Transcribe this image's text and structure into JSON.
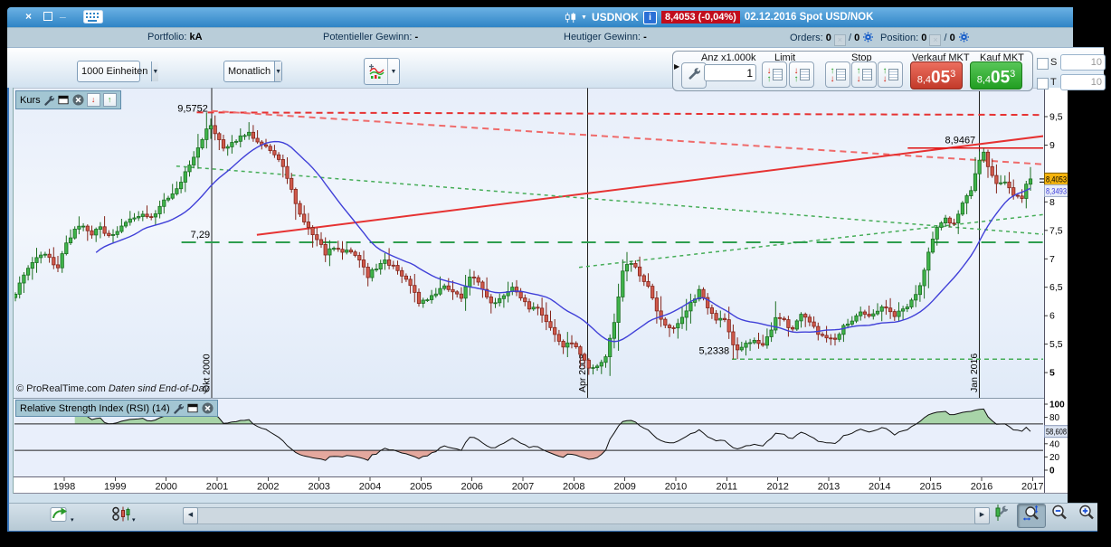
{
  "window": {
    "title_bar": {
      "close": "×",
      "maximize": "",
      "minimize": "_",
      "instrument": "USDNOK",
      "info": "i",
      "quote_badge": "8,4053 (-0,04%)",
      "date_info": "02.12.2016 Spot USD/NOK",
      "dropdown_caret": "▼"
    },
    "account_bar": {
      "portfolio_label": "Portfolio:",
      "portfolio_value": "kA",
      "potential_label": "Potentieller Gewinn:",
      "potential_value": "-",
      "today_label": "Heutiger Gewinn:",
      "today_value": "-",
      "orders_label": "Orders:",
      "orders_value": "0",
      "orders_sep": "/",
      "orders_value2": "0",
      "position_label": "Position:",
      "position_value": "0",
      "position_sep": "/",
      "position_value2": "0"
    },
    "toolbar": {
      "units_value": "1000 Einheiten",
      "period_value": "Monatlich",
      "caret": "▼",
      "panel_caret": "▶",
      "qty_label": "Anz x1.000k",
      "qty_value": "1",
      "limit_label": "Limit",
      "stop_label": "Stop",
      "sell_label": "Verkauf MKT",
      "buy_label": "Kauf MKT",
      "sell_price": {
        "pre": "8,4",
        "big": "05",
        "sup": "3"
      },
      "buy_price": {
        "pre": "8,4",
        "big": "05",
        "sup": "3"
      },
      "s_label": "S",
      "t_label": "T",
      "s_value": "10",
      "t_value": "10"
    },
    "bottom_bar": {
      "scroll_left": "◀",
      "scroll_right": "▶",
      "caret": "▾"
    }
  },
  "price_pane": {
    "header": "Kurs",
    "down_arrow": "↓",
    "up_arrow": "↑",
    "copyright": "© ProRealTime.com",
    "copyright2": "Daten sind End-of-Day"
  },
  "rsi_pane": {
    "header": "Relative Strength Index (RSI) (14)"
  },
  "colors": {
    "titlebar": "#2f84c6",
    "badge_red": "#c00d1d",
    "sell_red": "#c23a2a",
    "buy_green": "#219e21"
  },
  "chart_data": {
    "type": "candlestick",
    "title": "USD/NOK Monatlich (Kurs)",
    "x_domain_years": [
      1997.0,
      2017.23
    ],
    "price_range_visible": [
      4.55,
      10.0
    ],
    "year_ticks": [
      1998,
      1999,
      2000,
      2001,
      2002,
      2003,
      2004,
      2005,
      2006,
      2007,
      2008,
      2009,
      2010,
      2011,
      2012,
      2013,
      2014,
      2015,
      2016,
      2017
    ],
    "price_ticks": [
      {
        "v": 9.5,
        "label": "9,5"
      },
      {
        "v": 9,
        "label": "9"
      },
      {
        "v": 8,
        "label": "8"
      },
      {
        "v": 7.5,
        "label": "7,5"
      },
      {
        "v": 7,
        "label": "7"
      },
      {
        "v": 6.5,
        "label": "6,5"
      },
      {
        "v": 6,
        "label": "6"
      },
      {
        "v": 5.5,
        "label": "5,5"
      },
      {
        "v": 5,
        "label": "5",
        "bold": true
      }
    ],
    "price_markers": [
      {
        "value": 8.4053,
        "label": "8,4053",
        "bg": "#f6b40c",
        "fg": "#000",
        "border": "#806000"
      },
      {
        "value": 8.3493,
        "label": "8,3493",
        "bg": "#e8edf8",
        "fg": "#3b3bdd",
        "border": "#99a8c8"
      }
    ],
    "close_anchors": [
      [
        1997.0,
        6.4
      ],
      [
        1997.17,
        6.7
      ],
      [
        1997.33,
        6.95
      ],
      [
        1997.5,
        7.1
      ],
      [
        1997.67,
        7.0
      ],
      [
        1997.83,
        6.85
      ],
      [
        1998.0,
        7.3
      ],
      [
        1998.17,
        7.5
      ],
      [
        1998.33,
        7.6
      ],
      [
        1998.5,
        7.45
      ],
      [
        1998.67,
        7.55
      ],
      [
        1998.83,
        7.4
      ],
      [
        1999.0,
        7.5
      ],
      [
        1999.17,
        7.65
      ],
      [
        1999.33,
        7.75
      ],
      [
        1999.5,
        7.8
      ],
      [
        1999.67,
        7.7
      ],
      [
        1999.83,
        7.9
      ],
      [
        2000.0,
        8.1
      ],
      [
        2000.17,
        8.25
      ],
      [
        2000.33,
        8.5
      ],
      [
        2000.5,
        8.8
      ],
      [
        2000.67,
        9.1
      ],
      [
        2000.79,
        9.4
      ],
      [
        2000.92,
        9.2
      ],
      [
        2001.08,
        8.95
      ],
      [
        2001.25,
        9.05
      ],
      [
        2001.42,
        9.15
      ],
      [
        2001.58,
        9.25
      ],
      [
        2001.75,
        9.05
      ],
      [
        2001.92,
        8.95
      ],
      [
        2002.08,
        8.85
      ],
      [
        2002.25,
        8.6
      ],
      [
        2002.42,
        8.2
      ],
      [
        2002.58,
        7.8
      ],
      [
        2002.75,
        7.55
      ],
      [
        2002.92,
        7.35
      ],
      [
        2003.08,
        7.1
      ],
      [
        2003.25,
        7.2
      ],
      [
        2003.42,
        7.1
      ],
      [
        2003.58,
        7.15
      ],
      [
        2003.75,
        6.95
      ],
      [
        2003.92,
        6.7
      ],
      [
        2004.08,
        6.85
      ],
      [
        2004.25,
        6.95
      ],
      [
        2004.42,
        6.85
      ],
      [
        2004.58,
        6.7
      ],
      [
        2004.75,
        6.55
      ],
      [
        2004.92,
        6.2
      ],
      [
        2005.08,
        6.3
      ],
      [
        2005.25,
        6.4
      ],
      [
        2005.42,
        6.5
      ],
      [
        2005.58,
        6.45
      ],
      [
        2005.75,
        6.3
      ],
      [
        2005.92,
        6.7
      ],
      [
        2006.08,
        6.6
      ],
      [
        2006.25,
        6.3
      ],
      [
        2006.42,
        6.2
      ],
      [
        2006.58,
        6.35
      ],
      [
        2006.75,
        6.5
      ],
      [
        2006.92,
        6.3
      ],
      [
        2007.08,
        6.15
      ],
      [
        2007.25,
        6.1
      ],
      [
        2007.42,
        5.9
      ],
      [
        2007.58,
        5.7
      ],
      [
        2007.75,
        5.45
      ],
      [
        2007.92,
        5.55
      ],
      [
        2008.08,
        5.35
      ],
      [
        2008.25,
        5.05
      ],
      [
        2008.42,
        5.1
      ],
      [
        2008.58,
        5.3
      ],
      [
        2008.75,
        5.9
      ],
      [
        2008.92,
        6.8
      ],
      [
        2009.08,
        6.95
      ],
      [
        2009.25,
        6.7
      ],
      [
        2009.42,
        6.5
      ],
      [
        2009.58,
        6.1
      ],
      [
        2009.75,
        5.8
      ],
      [
        2009.92,
        5.8
      ],
      [
        2010.08,
        5.95
      ],
      [
        2010.25,
        6.2
      ],
      [
        2010.42,
        6.45
      ],
      [
        2010.58,
        6.15
      ],
      [
        2010.75,
        5.95
      ],
      [
        2010.92,
        5.9
      ],
      [
        2011.08,
        5.5
      ],
      [
        2011.17,
        5.38
      ],
      [
        2011.33,
        5.5
      ],
      [
        2011.5,
        5.55
      ],
      [
        2011.67,
        5.45
      ],
      [
        2011.83,
        5.75
      ],
      [
        2011.92,
        6.0
      ],
      [
        2012.08,
        5.9
      ],
      [
        2012.25,
        5.75
      ],
      [
        2012.42,
        6.05
      ],
      [
        2012.58,
        5.9
      ],
      [
        2012.75,
        5.7
      ],
      [
        2012.92,
        5.6
      ],
      [
        2013.08,
        5.6
      ],
      [
        2013.25,
        5.8
      ],
      [
        2013.42,
        5.9
      ],
      [
        2013.58,
        6.05
      ],
      [
        2013.75,
        6.0
      ],
      [
        2013.92,
        6.1
      ],
      [
        2014.08,
        6.15
      ],
      [
        2014.25,
        6.0
      ],
      [
        2014.42,
        6.1
      ],
      [
        2014.58,
        6.25
      ],
      [
        2014.75,
        6.55
      ],
      [
        2014.92,
        7.1
      ],
      [
        2015.08,
        7.55
      ],
      [
        2015.25,
        7.7
      ],
      [
        2015.42,
        7.6
      ],
      [
        2015.58,
        7.95
      ],
      [
        2015.75,
        8.2
      ],
      [
        2015.92,
        8.75
      ],
      [
        2016.0,
        8.85
      ],
      [
        2016.08,
        8.6
      ],
      [
        2016.25,
        8.3
      ],
      [
        2016.42,
        8.35
      ],
      [
        2016.58,
        8.15
      ],
      [
        2016.75,
        8.05
      ],
      [
        2016.83,
        8.3
      ],
      [
        2016.92,
        8.4053
      ]
    ],
    "pins": [
      {
        "year": 2000,
        "month": 10,
        "high": 9.5752
      },
      {
        "year": 2008,
        "month": 4,
        "low": 4.96
      },
      {
        "year": 2011,
        "month": 2,
        "low": 5.2338
      },
      {
        "year": 2016,
        "month": 1,
        "high": 8.9467
      }
    ],
    "last_close": 8.4053,
    "ma": {
      "period": 20,
      "color": "#4040d8",
      "last_value": 8.3493
    },
    "candle_colors": {
      "up_fill": "#3fb44a",
      "up_stroke": "#1c6e22",
      "down_fill": "#d05a4c",
      "down_stroke": "#84241a"
    },
    "annotations": [
      {
        "id": "resistance-95752",
        "x1": 2000.6,
        "p1": 9.5752,
        "x2": 2017.23,
        "p2": 9.53,
        "color": "#e63232",
        "dash": "7 5",
        "width": 2
      },
      {
        "id": "downtrend-from-peak",
        "x1": 2000.89,
        "p1": 9.6,
        "x2": 2017.23,
        "p2": 8.66,
        "color": "#ef6a6a",
        "dash": "7 5",
        "width": 2
      },
      {
        "id": "uptrend-red",
        "x1": 2001.78,
        "p1": 7.42,
        "x2": 2017.23,
        "p2": 9.16,
        "color": "#e63232",
        "dash": "",
        "width": 2
      },
      {
        "id": "level-89467",
        "x1": 2014.55,
        "p1": 8.9467,
        "x2": 2017.23,
        "p2": 8.9467,
        "color": "#e01010",
        "dash": "",
        "width": 1.5
      },
      {
        "id": "green-decline",
        "x1": 2000.2,
        "p1": 8.63,
        "x2": 2017.23,
        "p2": 7.43,
        "color": "#46ad58",
        "dash": "4 4",
        "width": 1.5
      },
      {
        "id": "green-rise",
        "x1": 2008.1,
        "p1": 6.85,
        "x2": 2017.23,
        "p2": 7.78,
        "color": "#46ad58",
        "dash": "4 4",
        "width": 1.5
      },
      {
        "id": "level-729",
        "x1": 2000.3,
        "p1": 7.29,
        "x2": 2017.23,
        "p2": 7.29,
        "color": "#2f9e4f",
        "dash": "16 10",
        "width": 2
      },
      {
        "id": "level-52338",
        "x1": 2011.1,
        "p1": 5.2338,
        "x2": 2017.23,
        "p2": 5.2338,
        "color": "#46ad58",
        "dash": "5 4",
        "width": 1.5
      }
    ],
    "labels": [
      {
        "text": "9,5752",
        "x": 2000.82,
        "p": 9.585,
        "anchor": "end"
      },
      {
        "text": "8,9467",
        "x": 2015.88,
        "p": 9.03,
        "anchor": "end"
      },
      {
        "text": "7,29",
        "x": 2000.86,
        "p": 7.37,
        "anchor": "end"
      },
      {
        "text": "5,2338",
        "x": 2011.05,
        "p": 5.33,
        "anchor": "end"
      }
    ],
    "vlines": [
      {
        "year": 2000.89,
        "label": "Okt 2000"
      },
      {
        "year": 2008.27,
        "label": "Apr 2008"
      },
      {
        "year": 2015.96,
        "label": "Jan 2016"
      }
    ],
    "rsi": {
      "period": 14,
      "last": 58.608,
      "value_label": "58,608",
      "overbought": 70,
      "oversold": 30,
      "ticks": [
        {
          "v": 100,
          "label": "100",
          "bold": true
        },
        {
          "v": 80,
          "label": "80"
        },
        {
          "v": 40,
          "label": "40"
        },
        {
          "v": 20,
          "label": "20"
        },
        {
          "v": 0,
          "label": "0",
          "bold": true
        }
      ],
      "line_color": "#101010",
      "fill_above": "#a8d4a8",
      "fill_below": "#e4a89e"
    }
  }
}
